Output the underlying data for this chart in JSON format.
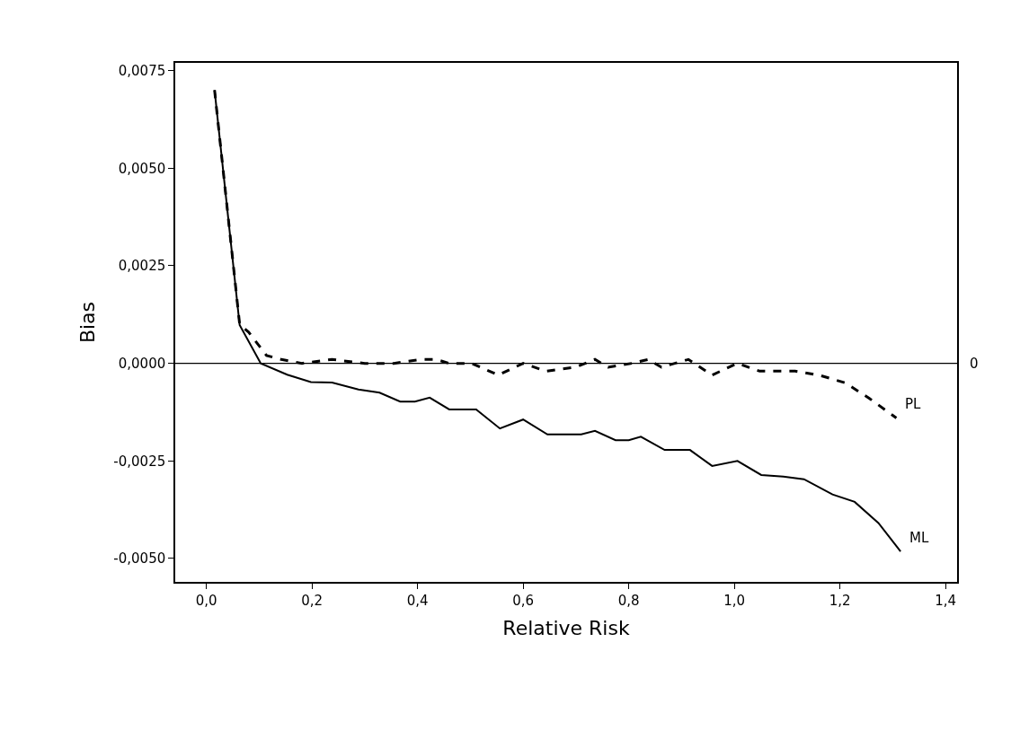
{
  "chart_data": {
    "type": "line",
    "xlabel": "Relative Risk",
    "ylabel": "Bias",
    "xlim": [
      -0.059,
      1.422
    ],
    "ylim": [
      -0.0056,
      0.0077
    ],
    "xticks": [
      {
        "value": 0,
        "label": "0,0"
      },
      {
        "value": 0.2,
        "label": "0,2"
      },
      {
        "value": 0.4,
        "label": "0,4"
      },
      {
        "value": 0.6,
        "label": "0,6"
      },
      {
        "value": 0.8,
        "label": "0,8"
      },
      {
        "value": 1.0,
        "label": "1,0"
      },
      {
        "value": 1.2,
        "label": "1,2"
      },
      {
        "value": 1.4,
        "label": "1,4"
      }
    ],
    "yticks": [
      {
        "value": -0.005,
        "label": "-0,0050"
      },
      {
        "value": -0.0025,
        "label": "-0,0025"
      },
      {
        "value": 0,
        "label": "0,0000"
      },
      {
        "value": 0.0025,
        "label": "0,0025"
      },
      {
        "value": 0.005,
        "label": "0,0050"
      },
      {
        "value": 0.0075,
        "label": "0,0075"
      }
    ],
    "marker": "none",
    "ref_lines": [
      {
        "axis": "y",
        "value": 0,
        "label": "0",
        "color": "#000000",
        "line_style": "solid"
      }
    ],
    "series": [
      {
        "name": "ML",
        "color": "#000000",
        "line_style": "solid",
        "x": [
          0.0155,
          0.063,
          0.103,
          0.153,
          0.198,
          0.238,
          0.288,
          0.328,
          0.367,
          0.395,
          0.423,
          0.46,
          0.511,
          0.556,
          0.6,
          0.646,
          0.71,
          0.736,
          0.775,
          0.8,
          0.823,
          0.868,
          0.916,
          0.958,
          1.006,
          1.051,
          1.093,
          1.132,
          1.186,
          1.228,
          1.273,
          1.315
        ],
        "values": [
          0.007,
          0.00098,
          0.0,
          -0.00029,
          -0.00048,
          -0.00049,
          -0.00067,
          -0.00075,
          -0.00098,
          -0.00098,
          -0.00088,
          -0.00118,
          -0.00118,
          -0.00167,
          -0.00144,
          -0.00182,
          -0.00182,
          -0.00173,
          -0.00197,
          -0.00197,
          -0.00188,
          -0.00222,
          -0.00222,
          -0.00263,
          -0.0025,
          -0.00286,
          -0.0029,
          -0.00297,
          -0.00336,
          -0.00355,
          -0.00409,
          -0.00482
        ]
      },
      {
        "name": "PL",
        "color": "#000000",
        "line_style": "dashed",
        "x": [
          0.0155,
          0.063,
          0.08,
          0.114,
          0.142,
          0.181,
          0.238,
          0.3,
          0.333,
          0.355,
          0.406,
          0.435,
          0.46,
          0.502,
          0.553,
          0.6,
          0.643,
          0.699,
          0.736,
          0.761,
          0.806,
          0.837,
          0.862,
          0.913,
          0.958,
          1.006,
          1.048,
          1.115,
          1.16,
          1.21,
          1.256,
          1.307
        ],
        "values": [
          0.007,
          0.001,
          0.0008,
          0.0002,
          0.0001,
          0.0,
          0.0001,
          0.0,
          0.0,
          0.0,
          0.0001,
          0.0001,
          0.0,
          0.0,
          -0.0003,
          0.0,
          -0.0002,
          -0.0001,
          0.0001,
          -0.0001,
          0.0,
          0.0001,
          -0.0001,
          0.0001,
          -0.0003,
          0.0,
          -0.0002,
          -0.0002,
          -0.0003,
          -0.0005,
          -0.0009,
          -0.0014
        ]
      }
    ]
  }
}
